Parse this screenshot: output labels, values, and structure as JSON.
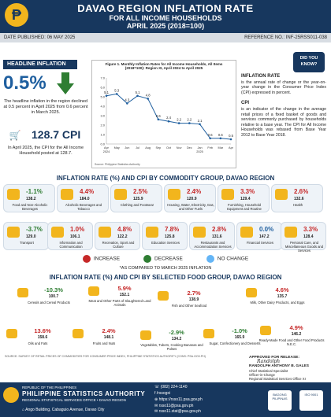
{
  "header": {
    "logo": "₱",
    "title": "DAVAO REGION INFLATION RATE",
    "subtitle1": "FOR ALL INCOME HOUSEHOLDS",
    "subtitle2": "APRIL 2025 (2018=100)"
  },
  "pub": {
    "date": "DATE PUBLISHED: 06 MAY 2025",
    "ref": "REFERENCE NO.: INF-25RSS011-038"
  },
  "headline": {
    "tag": "HEADLINE INFLATION",
    "value": "0.5%",
    "text": "The headline inflation in the region declined at 0.5 percent in April 2025 from 0.6 percent in March 2025.",
    "cpi": "128.7 CPI",
    "cpi_text": "In April 2025, the CPI for the All Income Household posted at 128.7."
  },
  "chart_data": {
    "type": "line",
    "title": "Figure 1. Monthly Inflation Rates for All Income Households, All Items (2018=100): Region XI, April 2024 to April 2025",
    "source": "Source: Philippine Statistics Authority",
    "categories": [
      "Apr",
      "May",
      "Jun",
      "Jul",
      "Aug",
      "Sep",
      "Oct",
      "Nov",
      "Dec",
      "Jan\n2025",
      "Feb",
      "Mar",
      "Apr"
    ],
    "values": [
      5.1,
      5.3,
      4.3,
      5.1,
      4.8,
      2.6,
      2.4,
      2.2,
      2.2,
      2.1,
      0.6,
      0.6,
      0.5
    ],
    "labels": [
      "5.1",
      "5.3",
      "4.3",
      "5.1",
      "4.8",
      "2.6",
      "2.4",
      "2.2",
      "2.2",
      "2.1",
      "0.6",
      "0.6",
      "0.5"
    ],
    "x_ticks": [
      "Apr",
      "May",
      "Jun",
      "Jul",
      "Aug",
      "Sep",
      "Oct",
      "Nov",
      "Dec",
      "Jan",
      "Feb",
      "Mar",
      "Apr"
    ],
    "x_sub": [
      "2024",
      "",
      "",
      "",
      "",
      "",
      "",
      "",
      "",
      "2025",
      "",
      "",
      ""
    ],
    "ylim": [
      0,
      7
    ],
    "y_ticks": [
      "7.0",
      "6.0",
      "5.0",
      "4.0",
      "3.0",
      "2.0",
      "1.0",
      "0.0"
    ],
    "color": "#1f5f9f"
  },
  "dyk": {
    "line1": "DID YOU",
    "line2": "KNOW?"
  },
  "defs": {
    "inf_title": "INFLATION RATE",
    "inf_text": "is the annual rate of change or the year-on-year change in the Consumer Price Index (CPI) expressed in percent.",
    "cpi_title": "CPI",
    "cpi_text": "is an indicator of the change in the average retail prices of a fixed basket of goods and services commonly purchased by households relative to a base year. The CPI for All Income Households was rebased from Base Year 2012 to Base Year 2018."
  },
  "sec1_title": "INFLATION RATE (%) AND CPI BY COMMODITY GROUP, DAVAO REGION",
  "commodities": [
    {
      "chg": "-1.1%",
      "cpi": "138.2",
      "name": "Food and Non-Alcoholic Beverages",
      "dir": "dn"
    },
    {
      "chg": "4.4%",
      "cpi": "184.0",
      "name": "Alcoholic Beverages and Tobacco",
      "dir": "up"
    },
    {
      "chg": "2.5%",
      "cpi": "125.9",
      "name": "Clothing and Footwear",
      "dir": "up"
    },
    {
      "chg": "2.4%",
      "cpi": "120.9",
      "name": "Housing, Water, Electricity, Gas, and Other Fuels",
      "dir": "up"
    },
    {
      "chg": "3.3%",
      "cpi": "129.4",
      "name": "Furnishing, Household Equipment and Routine",
      "dir": "up"
    },
    {
      "chg": "2.6%",
      "cpi": "132.6",
      "name": "Health",
      "dir": "up"
    },
    {
      "chg": "-3.7%",
      "cpi": "129.0",
      "name": "Transport",
      "dir": "dn"
    },
    {
      "chg": "1.0%",
      "cpi": "106.1",
      "name": "Information and Communication",
      "dir": "up"
    },
    {
      "chg": "4.8%",
      "cpi": "122.2",
      "name": "Recreation, Sport and Culture",
      "dir": "up"
    },
    {
      "chg": "7.8%",
      "cpi": "125.8",
      "name": "Education Services",
      "dir": "up"
    },
    {
      "chg": "2.8%",
      "cpi": "131.6",
      "name": "Restaurants and Accommodation Services",
      "dir": "up"
    },
    {
      "chg": "0.0%",
      "cpi": "147.2",
      "name": "Financial Services",
      "dir": "nc"
    },
    {
      "chg": "3.3%",
      "cpi": "128.4",
      "name": "Personal Care, and Miscellaneous Goods and Services",
      "dir": "up"
    }
  ],
  "legend": {
    "inc": "INCREASE",
    "dec": "DECREASE",
    "nc": "NO CHANGE",
    "inc_color": "#c62828",
    "dec_color": "#2e7d32",
    "nc_color": "#64b5f6"
  },
  "asof": "*AS COMPARED TO MARCH 2025 INFLATION",
  "sec2_title": "INFLATION RATE (%) AND CPI BY SELECTED FOOD GROUP, DAVAO REGION",
  "foods": [
    {
      "chg": "-10.3%",
      "cpi": "100.7",
      "name": "Cereals and Cereal Products",
      "dir": "dn"
    },
    {
      "chg": "5.9%",
      "cpi": "152.1",
      "name": "Meat and Other Parts of Slaughtered Land Animals",
      "dir": "up"
    },
    {
      "chg": "2.7%",
      "cpi": "138.9",
      "name": "Fish and Other Seafood",
      "dir": "up"
    },
    {
      "chg": "4.6%",
      "cpi": "135.7",
      "name": "Milk, Other Dairy Products, and Eggs",
      "dir": "up"
    },
    {
      "chg": "13.6%",
      "cpi": "158.6",
      "name": "Oils and Fats",
      "dir": "up"
    },
    {
      "chg": "2.4%",
      "cpi": "148.1",
      "name": "Fruits and Nuts",
      "dir": "up"
    },
    {
      "chg": "-2.9%",
      "cpi": "134.2",
      "name": "Vegetables, Tubers, Cooking Bananas and Pulses",
      "dir": "dn"
    },
    {
      "chg": "-1.0%",
      "cpi": "165.9",
      "name": "Sugar, Confectionery and Desserts",
      "dir": "dn"
    },
    {
      "chg": "4.9%",
      "cpi": "146.2",
      "name": "Ready-Made Food and Other Food Products N.E.C.",
      "dir": "up"
    }
  ],
  "source_note": "SOURCE: SURVEY OF RETAIL PRICES OF COMMODITIES FOR CONSUMER PRICE INDEX, PHILIPPINE STATISTICS AUTHORITY (CONS: PSA.GOV.PH)",
  "approved": {
    "label": "APPROVED FOR RELEASE:",
    "sig": "Randolph",
    "name": "RANDOLPH ANTHONY B. GALES",
    "role1": "Chief Statistical Specialist",
    "role2": "Officer-in-Charge",
    "role3": "Regional Statistical Services Office XI"
  },
  "footer": {
    "l1": "REPUBLIC OF THE PHILIPPINES",
    "l2": "PHILIPPINE STATISTICS AUTHORITY",
    "l3": "REGIONAL STATISTICAL SERVICES OFFICE • DAVAO REGION",
    "addr": "Ango Building, Cabaguio Avenue, Davao City",
    "phone": "(082) 224-1140",
    "social": "/rssogxi",
    "web": "https://rsso11.psa.gov.ph",
    "email1": "rsso11@psa.gov.ph",
    "email2": "rsso11.stat@psa.gov.ph",
    "bagong": "BAGONG PILIPINAS",
    "iso": "ISO 9001"
  }
}
